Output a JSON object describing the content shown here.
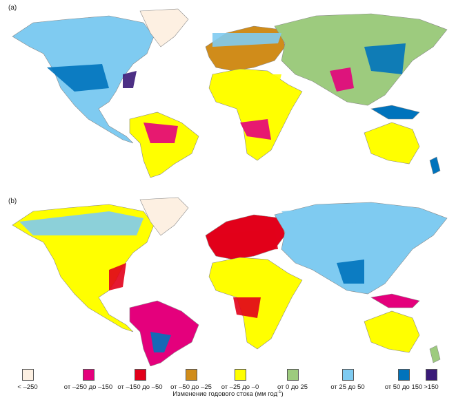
{
  "panels": [
    {
      "label": "(a)"
    },
    {
      "label": "(b)"
    }
  ],
  "legend": {
    "title": "Изменение годового стока (мм год",
    "title_sup": "-1",
    "title_end": ")",
    "items": [
      {
        "label": "< –250",
        "color": "#fdf0e2"
      },
      {
        "label": "от –250 до –150",
        "color": "#e4007c"
      },
      {
        "label": "от –150 до –50",
        "color": "#e2001a"
      },
      {
        "label": "от –50 до –25",
        "color": "#d08c1a"
      },
      {
        "label": "от –25 до –0",
        "color": "#ffff00"
      },
      {
        "label": "от 0 до 25",
        "color": "#9dcb7e"
      },
      {
        "label": "от 25 до 50",
        "color": "#7fcbf1"
      },
      {
        "label": "от 50 до 150",
        "color": "#0073bc"
      },
      {
        "label": ">150",
        "color": "#3a1a78"
      }
    ]
  }
}
